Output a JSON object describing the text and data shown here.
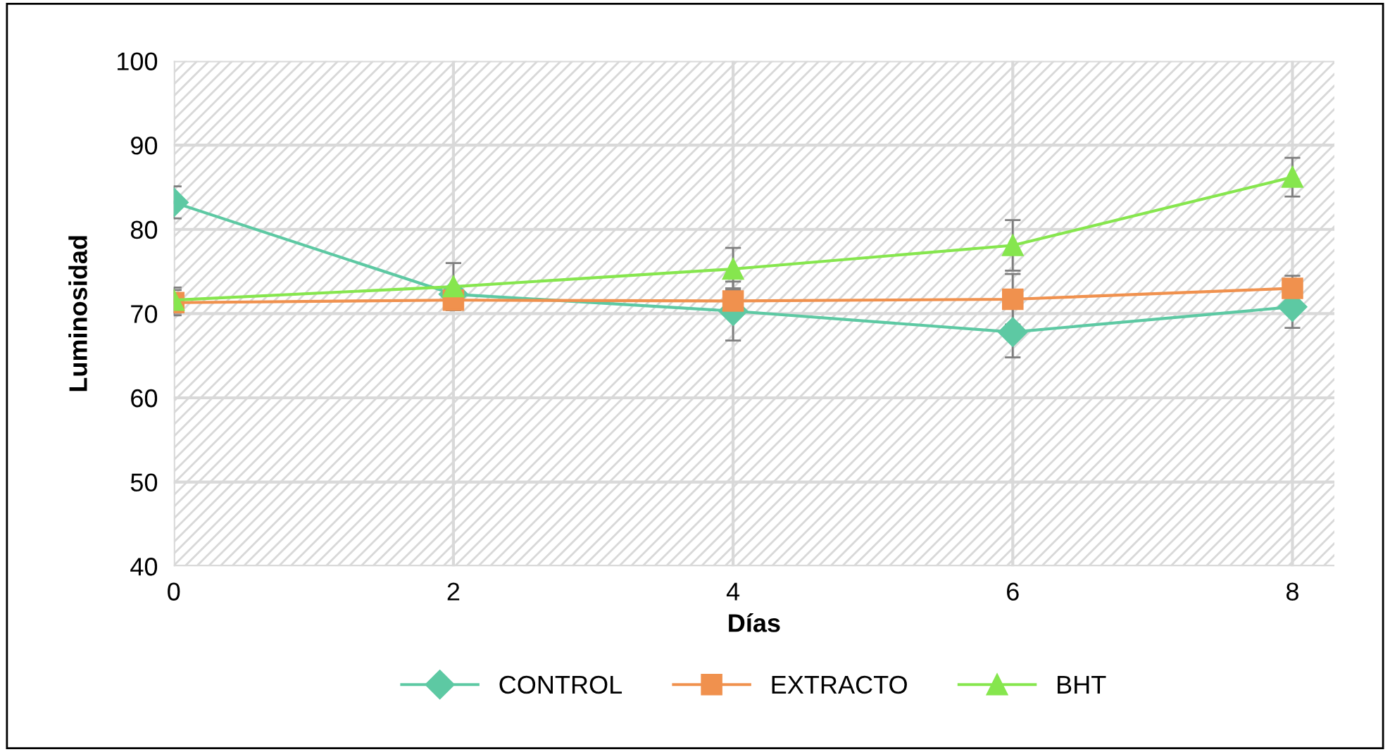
{
  "chart_data": {
    "type": "line",
    "xlabel": "Días",
    "ylabel": "Luminosidad",
    "x": [
      0,
      2,
      4,
      6,
      8
    ],
    "xlim": [
      0,
      8.3
    ],
    "xticks": [
      0,
      2,
      4,
      6,
      8
    ],
    "ylim": [
      40,
      100
    ],
    "yticks": [
      40,
      50,
      60,
      70,
      80,
      90,
      100
    ],
    "grid": true,
    "legend": "bottom",
    "line_style": "solid",
    "series": [
      {
        "name": "CONTROL",
        "color": "#5dc9a3",
        "marker": "diamond",
        "values": [
          83.2,
          72.3,
          70.3,
          67.8,
          70.8
        ],
        "errors": [
          1.9,
          null,
          3.5,
          3.0,
          2.5
        ]
      },
      {
        "name": "EXTRACTO",
        "color": "#f0914e",
        "marker": "square",
        "values": [
          71.3,
          71.6,
          71.5,
          71.7,
          73.0
        ],
        "errors": [
          1.5,
          null,
          1.5,
          3.0,
          1.5
        ]
      },
      {
        "name": "BHT",
        "color": "#86e64e",
        "marker": "triangle",
        "values": [
          71.6,
          73.2,
          75.3,
          78.1,
          86.2
        ],
        "errors": [
          1.5,
          2.8,
          2.5,
          3.0,
          2.3
        ]
      }
    ]
  }
}
